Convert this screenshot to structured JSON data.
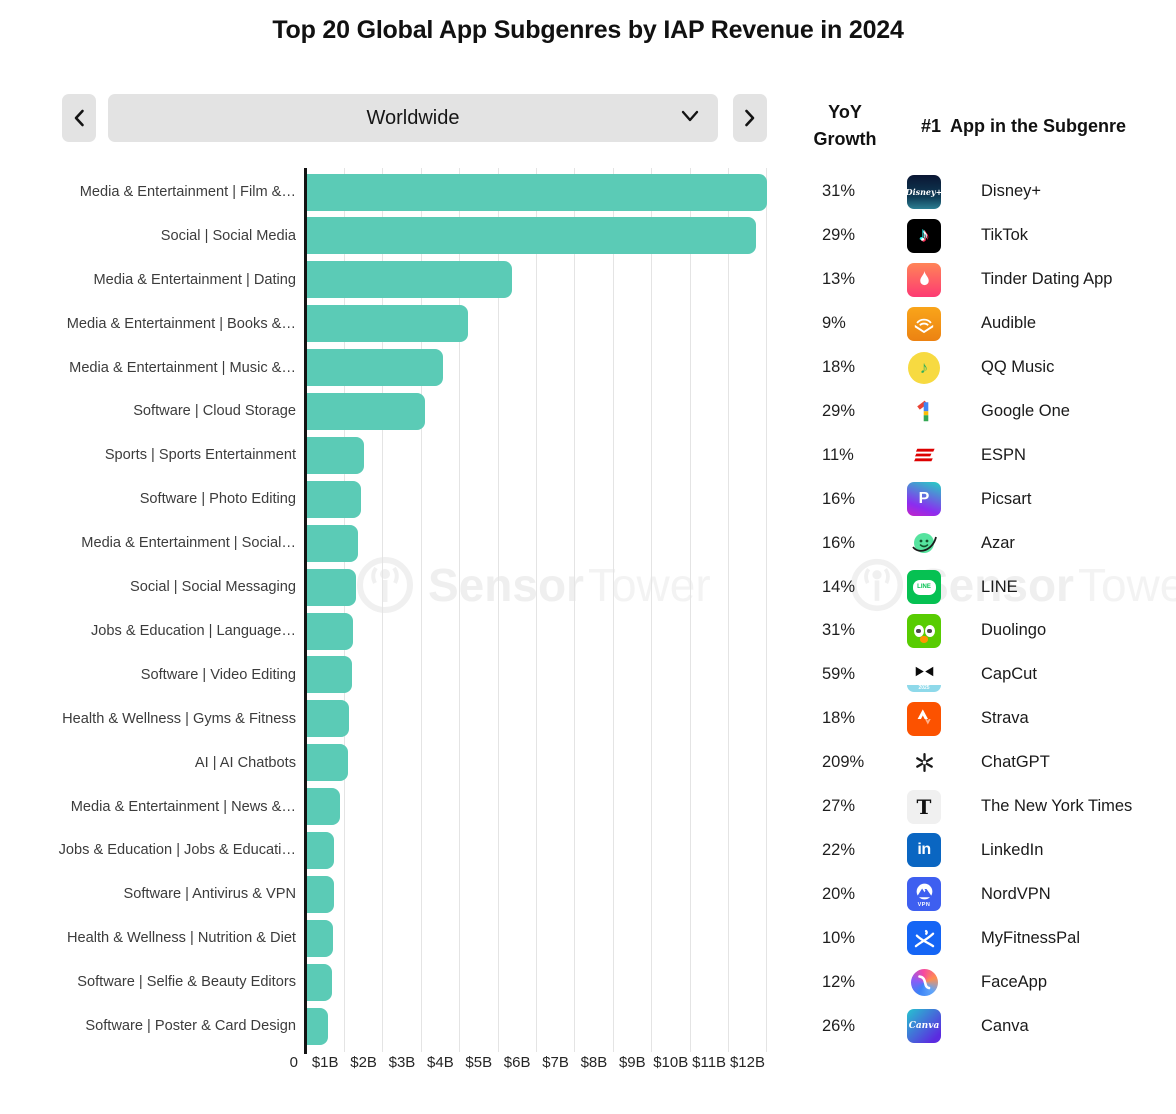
{
  "title": "Top 20 Global App Subgenres by IAP Revenue in 2024",
  "controls": {
    "prev_icon": "chevron-left-icon",
    "next_icon": "chevron-right-icon",
    "dropdown_icon": "chevron-down-icon",
    "selected_region": "Worldwide"
  },
  "columns": {
    "yoy_header": "YoY Growth",
    "app_header_prefix": "#1",
    "app_header": "App in the Subgenre"
  },
  "watermark": {
    "logo": "sensor-tower-logo",
    "brand_bold": "Sensor",
    "brand_light": "Tower"
  },
  "colors": {
    "bar": "#5bcbb6",
    "grid": "#e4e4e4",
    "axis": "#141414",
    "control_bg": "#e3e3e3"
  },
  "chart_data": {
    "type": "bar",
    "orientation": "horizontal",
    "title": "Top 20 Global App Subgenres by IAP Revenue in 2024",
    "xlabel": "",
    "ylabel": "",
    "grid": true,
    "xlim_billions": [
      0,
      12.25
    ],
    "x_tick_zero": "0",
    "x_ticks": [
      "$1B",
      "$2B",
      "$3B",
      "$4B",
      "$5B",
      "$6B",
      "$7B",
      "$8B",
      "$9B",
      "$10B",
      "$11B",
      "$12B"
    ],
    "categories": [
      "Media & Entertainment | Film &…",
      "Social | Social Media",
      "Media & Entertainment | Dating",
      "Media & Entertainment | Books &…",
      "Media & Entertainment | Music &…",
      "Software | Cloud Storage",
      "Sports | Sports Entertainment",
      "Software | Photo Editing",
      "Media & Entertainment | Social…",
      "Social | Social Messaging",
      "Jobs & Education | Language…",
      "Software | Video Editing",
      "Health & Wellness | Gyms & Fitness",
      "AI | AI Chatbots",
      "Media & Entertainment | News &…",
      "Jobs & Education | Jobs & Educati…",
      "Software | Antivirus & VPN",
      "Health & Wellness | Nutrition & Diet",
      "Software | Selfie & Beauty Editors",
      "Software | Poster & Card Design"
    ],
    "values_billions": [
      12.0,
      11.72,
      5.36,
      4.22,
      3.56,
      3.1,
      1.5,
      1.43,
      1.35,
      1.3,
      1.22,
      1.19,
      1.13,
      1.1,
      0.89,
      0.73,
      0.72,
      0.7,
      0.68,
      0.58
    ],
    "yoy_growth": [
      "31%",
      "29%",
      "13%",
      "9%",
      "18%",
      "29%",
      "11%",
      "16%",
      "16%",
      "14%",
      "31%",
      "59%",
      "18%",
      "209%",
      "27%",
      "22%",
      "20%",
      "10%",
      "12%",
      "26%"
    ],
    "top_apps": [
      "Disney+",
      "TikTok",
      "Tinder Dating App",
      "Audible",
      "QQ Music",
      "Google One",
      "ESPN",
      "Picsart",
      "Azar",
      "LINE",
      "Duolingo",
      "CapCut",
      "Strava",
      "ChatGPT",
      "The New York Times",
      "LinkedIn",
      "NordVPN",
      "MyFitnessPal",
      "FaceApp",
      "Canva"
    ],
    "app_icons": [
      "disney-plus-icon",
      "tiktok-icon",
      "tinder-icon",
      "audible-icon",
      "qq-music-icon",
      "google-one-icon",
      "espn-icon",
      "picsart-icon",
      "azar-icon",
      "line-icon",
      "duolingo-icon",
      "capcut-icon",
      "strava-icon",
      "chatgpt-icon",
      "nyt-icon",
      "linkedin-icon",
      "nordvpn-icon",
      "myfitnesspal-icon",
      "faceapp-icon",
      "canva-icon"
    ]
  }
}
